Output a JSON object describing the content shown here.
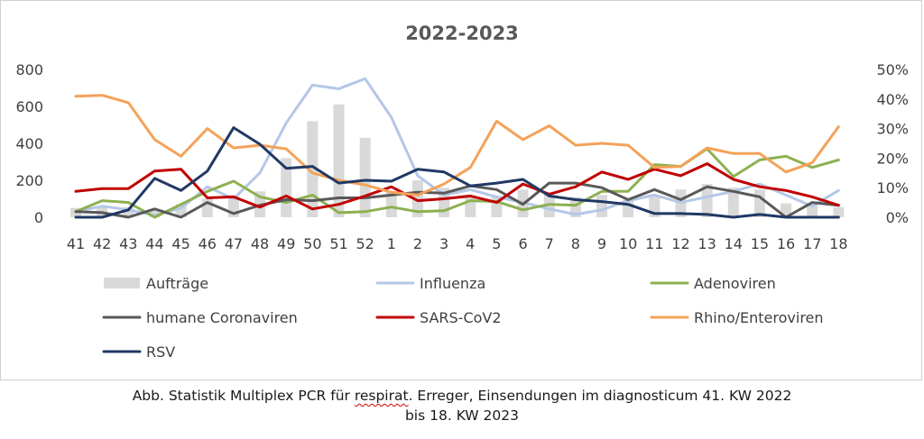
{
  "caption": {
    "line1_before": "Abb. Statistik Multiplex PCR für ",
    "line1_flagged": "respirat",
    "line1_after": ". Erreger, Einsendungen im diagnosticum 41. KW 2022",
    "line2": "bis 18. KW 2023"
  },
  "chart_data": {
    "type": "bar+line",
    "title": "2022-2023",
    "xlabel": "",
    "ylabel": "",
    "categories": [
      "41",
      "42",
      "43",
      "44",
      "45",
      "46",
      "47",
      "48",
      "49",
      "50",
      "51",
      "52",
      "1",
      "2",
      "3",
      "4",
      "5",
      "6",
      "7",
      "8",
      "9",
      "10",
      "11",
      "12",
      "13",
      "14",
      "15",
      "16",
      "17",
      "18"
    ],
    "y_left": {
      "lim": [
        0,
        800
      ],
      "ticks": [
        "0",
        "200",
        "400",
        "600",
        "800"
      ]
    },
    "y_right": {
      "lim": [
        0,
        50
      ],
      "ticks": [
        "0%",
        "10%",
        "20%",
        "30%",
        "40%",
        "50%"
      ]
    },
    "grid": false,
    "legend": "bottom",
    "bars": {
      "name": "Aufträge",
      "color": "#d9d9d9",
      "axis": "left",
      "values": [
        50,
        60,
        55,
        45,
        70,
        100,
        120,
        140,
        320,
        520,
        610,
        430,
        140,
        200,
        160,
        120,
        110,
        150,
        130,
        110,
        120,
        95,
        110,
        150,
        180,
        160,
        150,
        75,
        70,
        55
      ]
    },
    "series": [
      {
        "name": "Influenza",
        "color": "#b4c7e7",
        "axis": "left",
        "values": [
          30,
          60,
          40,
          10,
          50,
          165,
          100,
          240,
          510,
          715,
          695,
          750,
          540,
          225,
          120,
          150,
          110,
          80,
          45,
          15,
          40,
          90,
          120,
          80,
          110,
          140,
          180,
          120,
          60,
          145
        ]
      },
      {
        "name": "Adenoviren",
        "color": "#8db050",
        "axis": "left",
        "values": [
          30,
          90,
          80,
          0,
          70,
          140,
          195,
          110,
          80,
          120,
          25,
          30,
          55,
          30,
          35,
          90,
          85,
          40,
          70,
          65,
          140,
          140,
          285,
          275,
          370,
          220,
          310,
          330,
          270,
          310
        ]
      },
      {
        "name": "humane Coronaviren",
        "color": "#595959",
        "axis": "left",
        "values": [
          30,
          25,
          0,
          45,
          0,
          80,
          20,
          65,
          95,
          90,
          105,
          105,
          120,
          135,
          130,
          170,
          150,
          70,
          185,
          185,
          160,
          95,
          150,
          95,
          165,
          140,
          110,
          0,
          80,
          65
        ]
      },
      {
        "name": "SARS-CoV2",
        "color": "#c00000",
        "axis": "left",
        "values": [
          140,
          155,
          155,
          250,
          260,
          105,
          110,
          55,
          115,
          45,
          70,
          115,
          165,
          90,
          100,
          115,
          80,
          180,
          125,
          165,
          245,
          205,
          260,
          225,
          290,
          205,
          165,
          145,
          110,
          65
        ]
      },
      {
        "name": "Rhino/Enteroviren",
        "color": "#f4a259",
        "axis": "left",
        "values": [
          655,
          660,
          620,
          420,
          330,
          480,
          375,
          390,
          370,
          240,
          200,
          175,
          135,
          120,
          180,
          270,
          520,
          420,
          495,
          390,
          400,
          390,
          270,
          275,
          375,
          345,
          345,
          245,
          295,
          490
        ]
      },
      {
        "name": "RSV",
        "color": "#203864",
        "axis": "left",
        "values": [
          0,
          0,
          40,
          210,
          145,
          250,
          485,
          395,
          265,
          275,
          185,
          200,
          195,
          260,
          245,
          170,
          185,
          205,
          115,
          95,
          85,
          70,
          20,
          20,
          15,
          0,
          15,
          0,
          0,
          0
        ]
      }
    ]
  }
}
